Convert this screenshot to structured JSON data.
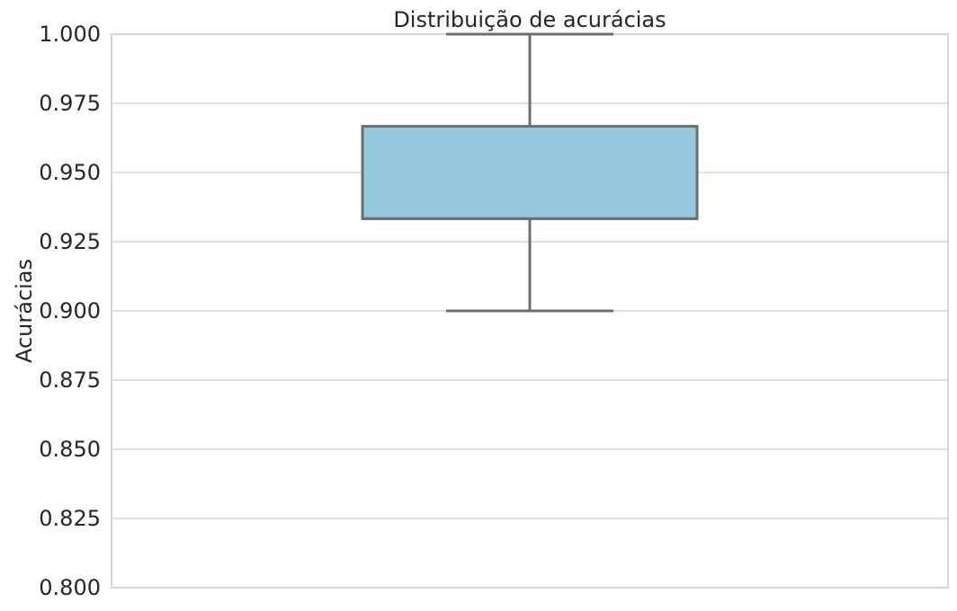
{
  "chart_data": {
    "type": "box",
    "title": "Distribuição de acurácias",
    "xlabel": "",
    "ylabel": "Acurácias",
    "ylim": [
      0.8,
      1.0
    ],
    "yticks": [
      "0.800",
      "0.825",
      "0.850",
      "0.875",
      "0.900",
      "0.925",
      "0.950",
      "0.975",
      "1.000"
    ],
    "grid": true,
    "box": {
      "min": 0.9,
      "q1": 0.9333,
      "median": 0.9333,
      "q3": 0.9667,
      "max": 1.0
    },
    "colors": {
      "box_fill": "#96c9de",
      "box_edge": "#6e6e6e",
      "grid": "#cccccc"
    }
  }
}
